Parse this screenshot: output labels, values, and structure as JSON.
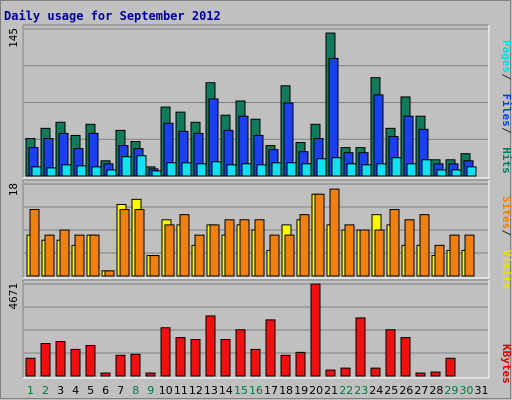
{
  "chart_data": {
    "type": "bar",
    "title": "Daily usage for September 2012",
    "days": [
      1,
      2,
      3,
      4,
      5,
      6,
      7,
      8,
      9,
      10,
      11,
      12,
      13,
      14,
      15,
      16,
      17,
      18,
      19,
      20,
      21,
      22,
      23,
      24,
      25,
      26,
      27,
      28,
      29,
      30,
      31
    ],
    "weekend_days": [
      1,
      2,
      8,
      9,
      15,
      16,
      22,
      23,
      29,
      30
    ],
    "day_labels": [
      "1",
      "2",
      "3",
      "4",
      "5",
      "6",
      "7",
      "8",
      "9",
      "10",
      "11",
      "12",
      "13",
      "14",
      "15",
      "16",
      "17",
      "18",
      "19",
      "20",
      "21",
      "22",
      "23",
      "24",
      "25",
      "26",
      "27",
      "28",
      "29",
      "30",
      "31"
    ],
    "panels": [
      {
        "id": "hits",
        "ymax_label": "145",
        "ymax": 145,
        "legend": [
          {
            "text": "Pages",
            "color": "#00E0E0"
          },
          {
            "text": " / ",
            "color": "#2a2a2a"
          },
          {
            "text": "Files",
            "color": "#0040F0"
          },
          {
            "text": " / ",
            "color": "#2a2a2a"
          },
          {
            "text": "Hits",
            "color": "#008060"
          }
        ],
        "series": [
          {
            "name": "Hits",
            "color": "#107A5A",
            "values": [
              37,
              47,
              53,
              40,
              51,
              15,
              45,
              34,
              9,
              68,
              63,
              53,
              92,
              60,
              74,
              56,
              30,
              89,
              33,
              51,
              141,
              28,
              28,
              97,
              47,
              78,
              59,
              16,
              16,
              22,
              0
            ]
          },
          {
            "name": "Files",
            "color": "#1A40F0",
            "values": [
              28,
              37,
              42,
              27,
              42,
              12,
              30,
              27,
              7,
              52,
              44,
              42,
              76,
              45,
              59,
              40,
              26,
              72,
              24,
              37,
              116,
              23,
              23,
              80,
              39,
              59,
              46,
              12,
              12,
              15,
              0
            ]
          },
          {
            "name": "Pages",
            "color": "#10E0F0",
            "values": [
              9,
              8,
              11,
              10,
              9,
              6,
              19,
              20,
              5,
              13,
              13,
              12,
              14,
              11,
              12,
              11,
              13,
              13,
              12,
              17,
              18,
              12,
              11,
              12,
              18,
              12,
              16,
              6,
              6,
              9,
              0
            ]
          }
        ]
      },
      {
        "id": "visits",
        "ymax_label": "18",
        "ymax": 18,
        "legend": [
          {
            "text": "Sites",
            "color": "#F08000"
          },
          {
            "text": " / ",
            "color": "#2a2a2a"
          },
          {
            "text": "Visits",
            "color": "#E8E000"
          }
        ],
        "series": [
          {
            "name": "Visits",
            "color": "#F8F800",
            "values": [
              8,
              7,
              7,
              6,
              8,
              1,
              14,
              15,
              4,
              11,
              10,
              6,
              10,
              8,
              10,
              9,
              5,
              10,
              11,
              16,
              10,
              9,
              9,
              12,
              10,
              6,
              6,
              4,
              5,
              5,
              0
            ]
          },
          {
            "name": "Sites",
            "color": "#F08010",
            "values": [
              13,
              8,
              9,
              8,
              8,
              1,
              13,
              13,
              4,
              10,
              12,
              8,
              10,
              11,
              11,
              11,
              8,
              8,
              12,
              16,
              17,
              10,
              9,
              9,
              13,
              11,
              12,
              6,
              8,
              8,
              0
            ]
          }
        ]
      },
      {
        "id": "kbytes",
        "ymax_label": "4671",
        "ymax": 4671,
        "legend": [
          {
            "text": "KBytes",
            "color": "#E00000"
          }
        ],
        "series": [
          {
            "name": "KBytes",
            "color": "#F01010",
            "values": [
              900,
              1650,
              1750,
              1350,
              1550,
              150,
              1050,
              1100,
              150,
              2450,
              1950,
              1850,
              3050,
              1850,
              2350,
              1350,
              2850,
              1050,
              1200,
              4671,
              300,
              400,
              2950,
              400,
              2350,
              1950,
              150,
              200,
              900,
              0,
              0
            ]
          }
        ]
      }
    ]
  }
}
